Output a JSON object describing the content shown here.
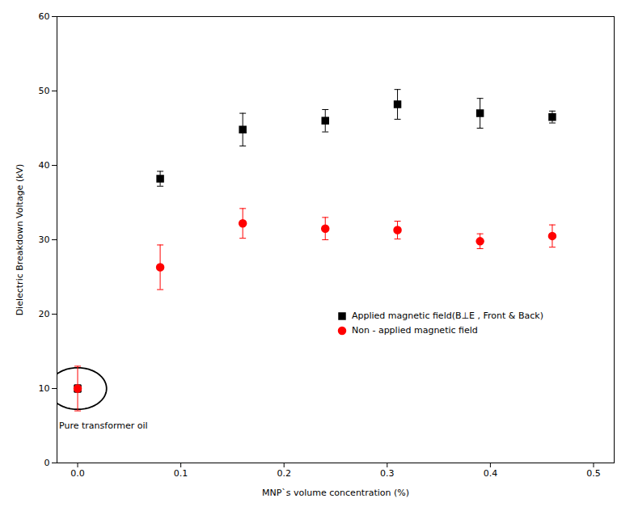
{
  "chart_data": {
    "type": "scatter",
    "xlabel": "MNP`s volume concentration (%)",
    "ylabel": "Dielectric Breakdown Voltage (kV)",
    "xlim": [
      -0.02,
      0.52
    ],
    "ylim": [
      0,
      60
    ],
    "xticks": [
      {
        "value": 0.0,
        "label": "0.0"
      },
      0.1,
      0.2,
      0.3,
      0.4,
      0.5
    ],
    "yticks": [
      0,
      10,
      20,
      30,
      40,
      50,
      60
    ],
    "grid": false,
    "legend": "lower right",
    "series": [
      {
        "name": "Applied magnetic field(B⊥E , Front & Back)",
        "color": "black",
        "marker": "square",
        "x": [
          0.0,
          0.08,
          0.16,
          0.24,
          0.31,
          0.39,
          0.46
        ],
        "values": [
          10.0,
          38.2,
          44.8,
          46.0,
          48.2,
          47.0,
          46.5
        ],
        "errors": [
          0.5,
          1.0,
          2.2,
          1.5,
          2.0,
          2.0,
          0.8
        ]
      },
      {
        "name": "Non - applied magnetic field",
        "color": "red",
        "marker": "circle",
        "x": [
          0.0,
          0.08,
          0.16,
          0.24,
          0.31,
          0.39,
          0.46
        ],
        "values": [
          10.0,
          26.3,
          32.2,
          31.5,
          31.3,
          29.8,
          30.5
        ],
        "errors": [
          3.0,
          3.0,
          2.0,
          1.5,
          1.2,
          1.0,
          1.5
        ]
      }
    ],
    "annotations": [
      {
        "text": "Pure transformer oil",
        "x": -0.018,
        "y": 5.5
      }
    ],
    "ellipse": {
      "x": 0.0,
      "y": 10.0,
      "rx": 0.028,
      "ry": 2.8
    }
  }
}
